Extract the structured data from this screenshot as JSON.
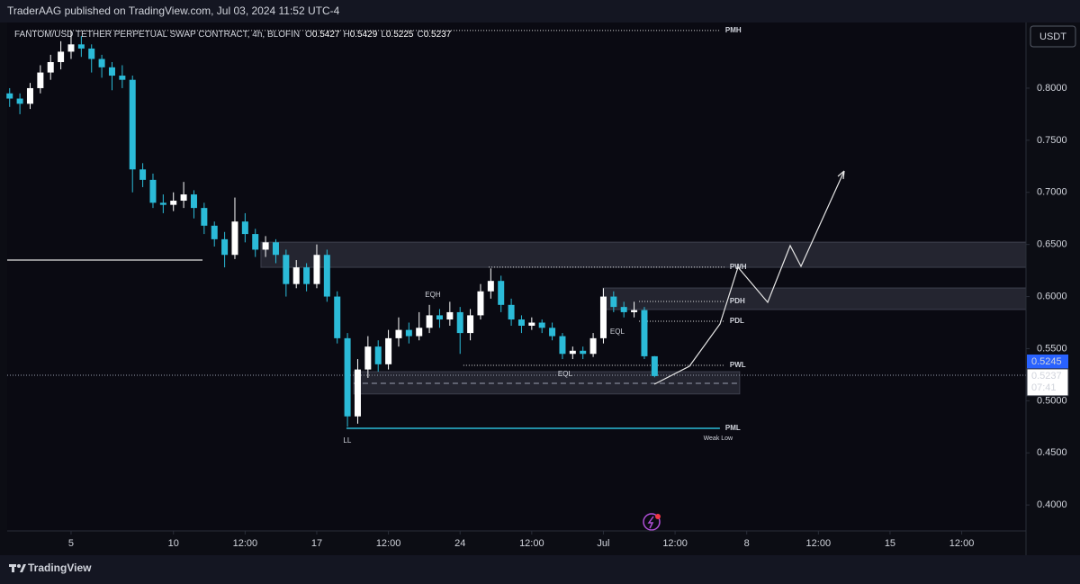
{
  "header": {
    "publisher": "TraderAAG published on TradingView.com, Jul 03, 2024 11:52 UTC-4"
  },
  "chart_data": {
    "type": "candlestick",
    "title": "FANTOM/USD TETHER PERPETUAL SWAP CONTRACT, 4h, BLOFIN",
    "ohlc_labels": [
      "O",
      "H",
      "L",
      "C"
    ],
    "currency": "USDT",
    "up_color": "#ffffff",
    "down_color": "#2bbbd8",
    "x": [
      2,
      2.5,
      3,
      3.5,
      4,
      4.5,
      5,
      5.5,
      6,
      6.5,
      7,
      7.5,
      8,
      8.5,
      9,
      9.5,
      10,
      10.5,
      11,
      11.5,
      12,
      12.5,
      13,
      13.5,
      14,
      14.5,
      15,
      15.5,
      16,
      16.5,
      17,
      17.5,
      18,
      18.5,
      19,
      19.5,
      20,
      20.5,
      21,
      21.5,
      22,
      22.5,
      23,
      23.5,
      24,
      24.5,
      25,
      25.5,
      26,
      26.5,
      27,
      27.5,
      28,
      28.5,
      29,
      29.5,
      30,
      30.5,
      31,
      31.5,
      32,
      32.5,
      33,
      33.5
    ],
    "open": [
      0.795,
      0.79,
      0.785,
      0.8,
      0.815,
      0.825,
      0.835,
      0.842,
      0.838,
      0.828,
      0.82,
      0.812,
      0.808,
      0.722,
      0.712,
      0.69,
      0.688,
      0.692,
      0.698,
      0.685,
      0.668,
      0.655,
      0.64,
      0.672,
      0.66,
      0.645,
      0.652,
      0.64,
      0.612,
      0.628,
      0.612,
      0.64,
      0.6,
      0.56,
      0.485,
      0.53,
      0.552,
      0.535,
      0.56,
      0.568,
      0.562,
      0.57,
      0.582,
      0.578,
      0.585,
      0.565,
      0.582,
      0.605,
      0.615,
      0.592,
      0.578,
      0.572,
      0.575,
      0.57,
      0.562,
      0.545,
      0.548,
      0.545,
      0.56,
      0.6,
      0.59,
      0.585,
      0.587,
      0.5427
    ],
    "high": [
      0.8,
      0.795,
      0.805,
      0.822,
      0.832,
      0.845,
      0.855,
      0.85,
      0.842,
      0.832,
      0.825,
      0.822,
      0.812,
      0.728,
      0.718,
      0.698,
      0.7,
      0.71,
      0.702,
      0.69,
      0.672,
      0.662,
      0.695,
      0.68,
      0.665,
      0.658,
      0.655,
      0.645,
      0.635,
      0.632,
      0.65,
      0.645,
      0.605,
      0.565,
      0.54,
      0.562,
      0.558,
      0.568,
      0.58,
      0.575,
      0.585,
      0.592,
      0.588,
      0.595,
      0.59,
      0.588,
      0.612,
      0.627,
      0.62,
      0.598,
      0.582,
      0.58,
      0.578,
      0.575,
      0.565,
      0.552,
      0.552,
      0.565,
      0.608,
      0.605,
      0.595,
      0.595,
      0.59,
      0.5429
    ],
    "low": [
      0.782,
      0.775,
      0.78,
      0.795,
      0.808,
      0.818,
      0.828,
      0.83,
      0.815,
      0.81,
      0.798,
      0.8,
      0.7,
      0.705,
      0.685,
      0.68,
      0.682,
      0.685,
      0.675,
      0.66,
      0.648,
      0.628,
      0.636,
      0.652,
      0.638,
      0.638,
      0.632,
      0.6,
      0.608,
      0.605,
      0.608,
      0.595,
      0.555,
      0.475,
      0.478,
      0.522,
      0.528,
      0.53,
      0.552,
      0.555,
      0.558,
      0.565,
      0.57,
      0.572,
      0.545,
      0.558,
      0.578,
      0.598,
      0.585,
      0.572,
      0.565,
      0.568,
      0.565,
      0.558,
      0.54,
      0.54,
      0.54,
      0.542,
      0.555,
      0.585,
      0.58,
      0.58,
      0.54,
      0.5225
    ],
    "close": [
      0.79,
      0.785,
      0.8,
      0.815,
      0.825,
      0.835,
      0.842,
      0.838,
      0.828,
      0.82,
      0.812,
      0.808,
      0.722,
      0.712,
      0.69,
      0.688,
      0.692,
      0.698,
      0.685,
      0.668,
      0.655,
      0.64,
      0.672,
      0.66,
      0.645,
      0.652,
      0.64,
      0.612,
      0.628,
      0.612,
      0.64,
      0.6,
      0.56,
      0.485,
      0.53,
      0.552,
      0.535,
      0.56,
      0.568,
      0.562,
      0.57,
      0.582,
      0.578,
      0.585,
      0.565,
      0.582,
      0.605,
      0.615,
      0.592,
      0.578,
      0.572,
      0.575,
      0.57,
      0.562,
      0.545,
      0.548,
      0.545,
      0.56,
      0.6,
      0.59,
      0.585,
      0.587,
      0.5427,
      0.5237
    ],
    "countdown": "07:41",
    "marker_price": 0.5245,
    "marker_color": "#2962ff",
    "xlim": [
      1.88,
      51.64
    ],
    "xticks": [
      5,
      10,
      {
        "value": 13.5,
        "label": "12:00"
      },
      17,
      {
        "value": 20.5,
        "label": "12:00"
      },
      24,
      {
        "value": 27.5,
        "label": "12:00"
      },
      {
        "value": 31,
        "label": "Jul"
      },
      {
        "value": 34.5,
        "label": "12:00"
      },
      {
        "value": 38,
        "label": "8"
      },
      {
        "value": 41.5,
        "label": "12:00"
      },
      {
        "value": 45,
        "label": "15"
      },
      {
        "value": 48.5,
        "label": "12:00"
      }
    ],
    "ylim": [
      0.3751,
      0.863
    ],
    "yticks": [
      {
        "value": 0.8,
        "label": "0.8000"
      },
      {
        "value": 0.75,
        "label": "0.7500"
      },
      {
        "value": 0.7,
        "label": "0.7000"
      },
      {
        "value": 0.65,
        "label": "0.6500"
      },
      {
        "value": 0.6,
        "label": "0.6000"
      },
      {
        "value": 0.55,
        "label": "0.5500"
      },
      {
        "value": 0.5,
        "label": "0.5000"
      },
      {
        "value": 0.45,
        "label": "0.4500"
      },
      {
        "value": 0.4,
        "label": "0.4000"
      }
    ],
    "grid": false,
    "zones": [
      {
        "top": 0.6523,
        "bottom": 0.628,
        "x": [
          14.27,
          51.64
        ]
      },
      {
        "top": 0.6083,
        "bottom": 0.5875,
        "x": [
          30.98,
          51.64
        ]
      },
      {
        "top": 0.528,
        "bottom": 0.5065,
        "x": [
          18.8,
          37.66
        ],
        "mid": 0.5167
      }
    ],
    "horizontal_lines": [
      {
        "value": 0.635,
        "x": [
          1.88,
          11.42
        ],
        "color": "#e0e0e0"
      }
    ],
    "levels": [
      {
        "name": "PMH",
        "value": 0.8553,
        "x": [
          2.85,
          36.69
        ],
        "color": "#e0e0e0",
        "dash": "dotted"
      },
      {
        "name": "PWH",
        "value": 0.6282,
        "x": [
          25.4,
          36.91
        ],
        "color": "#e0e0e0",
        "dash": "dotted"
      },
      {
        "name": "PDH",
        "value": 0.5953,
        "x": [
          32.74,
          36.91
        ],
        "color": "#e0e0e0",
        "dash": "dotted"
      },
      {
        "name": "PDL",
        "value": 0.5763,
        "x": [
          32.74,
          36.91
        ],
        "color": "#e0e0e0",
        "dash": "dotted"
      },
      {
        "name": "PWL",
        "value": 0.534,
        "x": [
          24.16,
          36.91
        ],
        "color": "#e0e0e0",
        "dash": "dotted"
      },
      {
        "name": "PML",
        "value": 0.4735,
        "x": [
          18.45,
          36.69
        ],
        "color": "#2bbbd8",
        "dash": "solid"
      }
    ],
    "annotations": [
      {
        "text": "EQH",
        "x": 22.67,
        "y": 0.6014,
        "color": "#e0e0e0"
      },
      {
        "text": "EQL",
        "x": 31.68,
        "y": 0.566,
        "color": "#2bbbd8"
      },
      {
        "text": "EQL",
        "x": 29.13,
        "y": 0.5254,
        "color": "#2bbbd8"
      },
      {
        "text": "LL",
        "x": 18.49,
        "y": 0.4614,
        "color": "#2bbbd8"
      },
      {
        "text": "Weak Low",
        "x": 36.6,
        "y": 0.464,
        "color": "#2bbbd8"
      }
    ]
  },
  "footer": {
    "brand": "TradingView"
  }
}
